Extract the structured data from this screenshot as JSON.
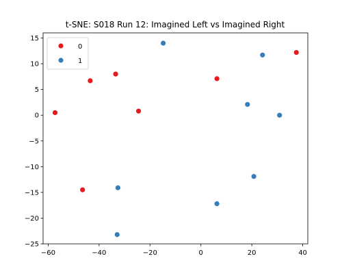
{
  "chart_data": {
    "type": "scatter",
    "title": "t-SNE: S018 Run 12: Imagined Left vs Imagined Right",
    "xlabel": "",
    "ylabel": "",
    "xlim": [
      -62,
      42
    ],
    "ylim": [
      -25,
      16
    ],
    "x_ticks": [
      -60,
      -40,
      -20,
      0,
      20,
      40
    ],
    "y_ticks": [
      -25,
      -20,
      -15,
      -10,
      -5,
      0,
      5,
      10,
      15
    ],
    "grid": false,
    "legend_position": "top-left",
    "series": [
      {
        "name": "0",
        "color": "#e41a1c",
        "points": [
          {
            "x": -57.3,
            "y": 0.5
          },
          {
            "x": -43.5,
            "y": 6.7
          },
          {
            "x": -33.5,
            "y": 8.0
          },
          {
            "x": -24.5,
            "y": 0.8
          },
          {
            "x": -46.5,
            "y": -14.5
          },
          {
            "x": 6.3,
            "y": 7.1
          },
          {
            "x": 37.5,
            "y": 12.2
          }
        ]
      },
      {
        "name": "1",
        "color": "#377eb8",
        "points": [
          {
            "x": -14.8,
            "y": 14.0
          },
          {
            "x": 24.2,
            "y": 11.7
          },
          {
            "x": 18.3,
            "y": 2.1
          },
          {
            "x": 30.9,
            "y": 0.0
          },
          {
            "x": 20.8,
            "y": -11.9
          },
          {
            "x": 6.3,
            "y": -17.2
          },
          {
            "x": -32.6,
            "y": -14.1
          },
          {
            "x": -32.9,
            "y": -23.2
          }
        ]
      }
    ]
  }
}
